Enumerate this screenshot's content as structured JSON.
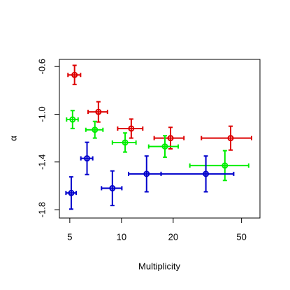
{
  "chart_data": {
    "type": "scatter",
    "x_label": "Multiplicity",
    "y_label": "α",
    "x_log": true,
    "xlim": [
      4.35,
      64
    ],
    "xticks": [
      5,
      10,
      20,
      50
    ],
    "ylim": [
      -1.87,
      -0.54
    ],
    "yticks": [
      -0.6,
      {
        "value": -1,
        "label": "-1.0"
      },
      -1.4,
      -1.8
    ],
    "series": [
      {
        "color": "#dd0000",
        "x": [
          5.33,
          7.34,
          11.4,
          19.3,
          43.2
        ],
        "values": [
          -0.67,
          -0.98,
          -1.12,
          -1.2,
          -1.2
        ],
        "x_err": [
          0.45,
          0.95,
          1.9,
          3.8,
          14
        ],
        "y_err": [
          0.08,
          0.085,
          0.08,
          0.09,
          0.1
        ]
      },
      {
        "color": "#00ee00",
        "x": [
          5.19,
          7.0,
          10.5,
          17.9,
          40
        ],
        "values": [
          -1.044,
          -1.13,
          -1.237,
          -1.27,
          -1.43
        ],
        "x_err": [
          0.4,
          0.8,
          1.65,
          3.5,
          15
        ],
        "y_err": [
          0.075,
          0.07,
          0.08,
          0.09,
          0.125
        ]
      },
      {
        "color": "#0000cc",
        "x": [
          5.1,
          6.3,
          8.85,
          14.0,
          31
        ],
        "values": [
          -1.66,
          -1.37,
          -1.62,
          -1.5,
          -1.5
        ],
        "x_err": [
          0.35,
          0.5,
          1.2,
          3,
          14
        ],
        "y_err": [
          0.135,
          0.135,
          0.145,
          0.15,
          0.15
        ]
      }
    ]
  }
}
